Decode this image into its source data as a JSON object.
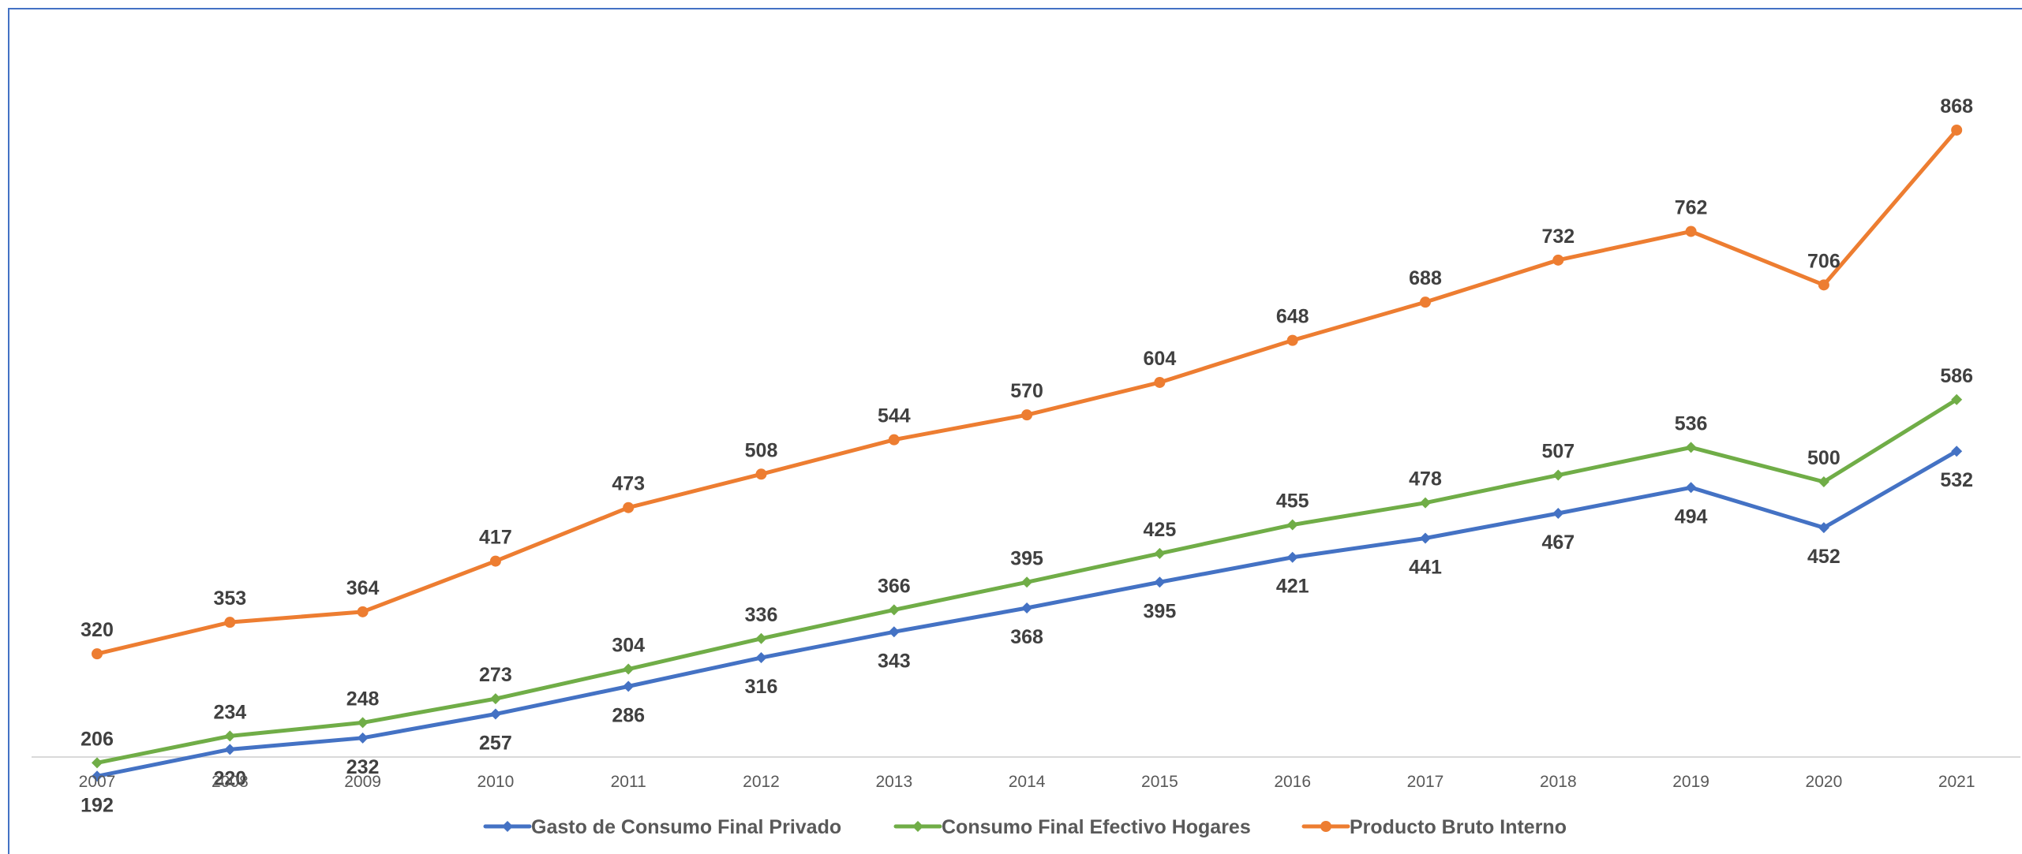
{
  "chart_data": {
    "type": "line",
    "title": "",
    "xlabel": "",
    "ylabel": "",
    "categories": [
      "2007",
      "2008",
      "2009",
      "2010",
      "2011",
      "2012",
      "2013",
      "2014",
      "2015",
      "2016",
      "2017",
      "2018",
      "2019",
      "2020",
      "2021"
    ],
    "ylim": [
      0,
      950
    ],
    "grid": false,
    "legend_position": "bottom",
    "series": [
      {
        "name": "Gasto de Consumo Final Privado",
        "color": "#4472C4",
        "marker": "diamond",
        "label_position": "below",
        "values": [
          192,
          220,
          232,
          257,
          286,
          316,
          343,
          368,
          395,
          421,
          441,
          467,
          494,
          452,
          532
        ]
      },
      {
        "name": "Consumo Final Efectivo Hogares",
        "color": "#70AD47",
        "marker": "diamond",
        "label_position": "above",
        "values": [
          206,
          234,
          248,
          273,
          304,
          336,
          366,
          395,
          425,
          455,
          478,
          507,
          536,
          500,
          586
        ]
      },
      {
        "name": "Producto Bruto Interno",
        "color": "#ED7D31",
        "marker": "circle",
        "label_position": "above",
        "values": [
          320,
          353,
          364,
          417,
          473,
          508,
          544,
          570,
          604,
          648,
          688,
          732,
          762,
          706,
          868
        ]
      }
    ]
  }
}
